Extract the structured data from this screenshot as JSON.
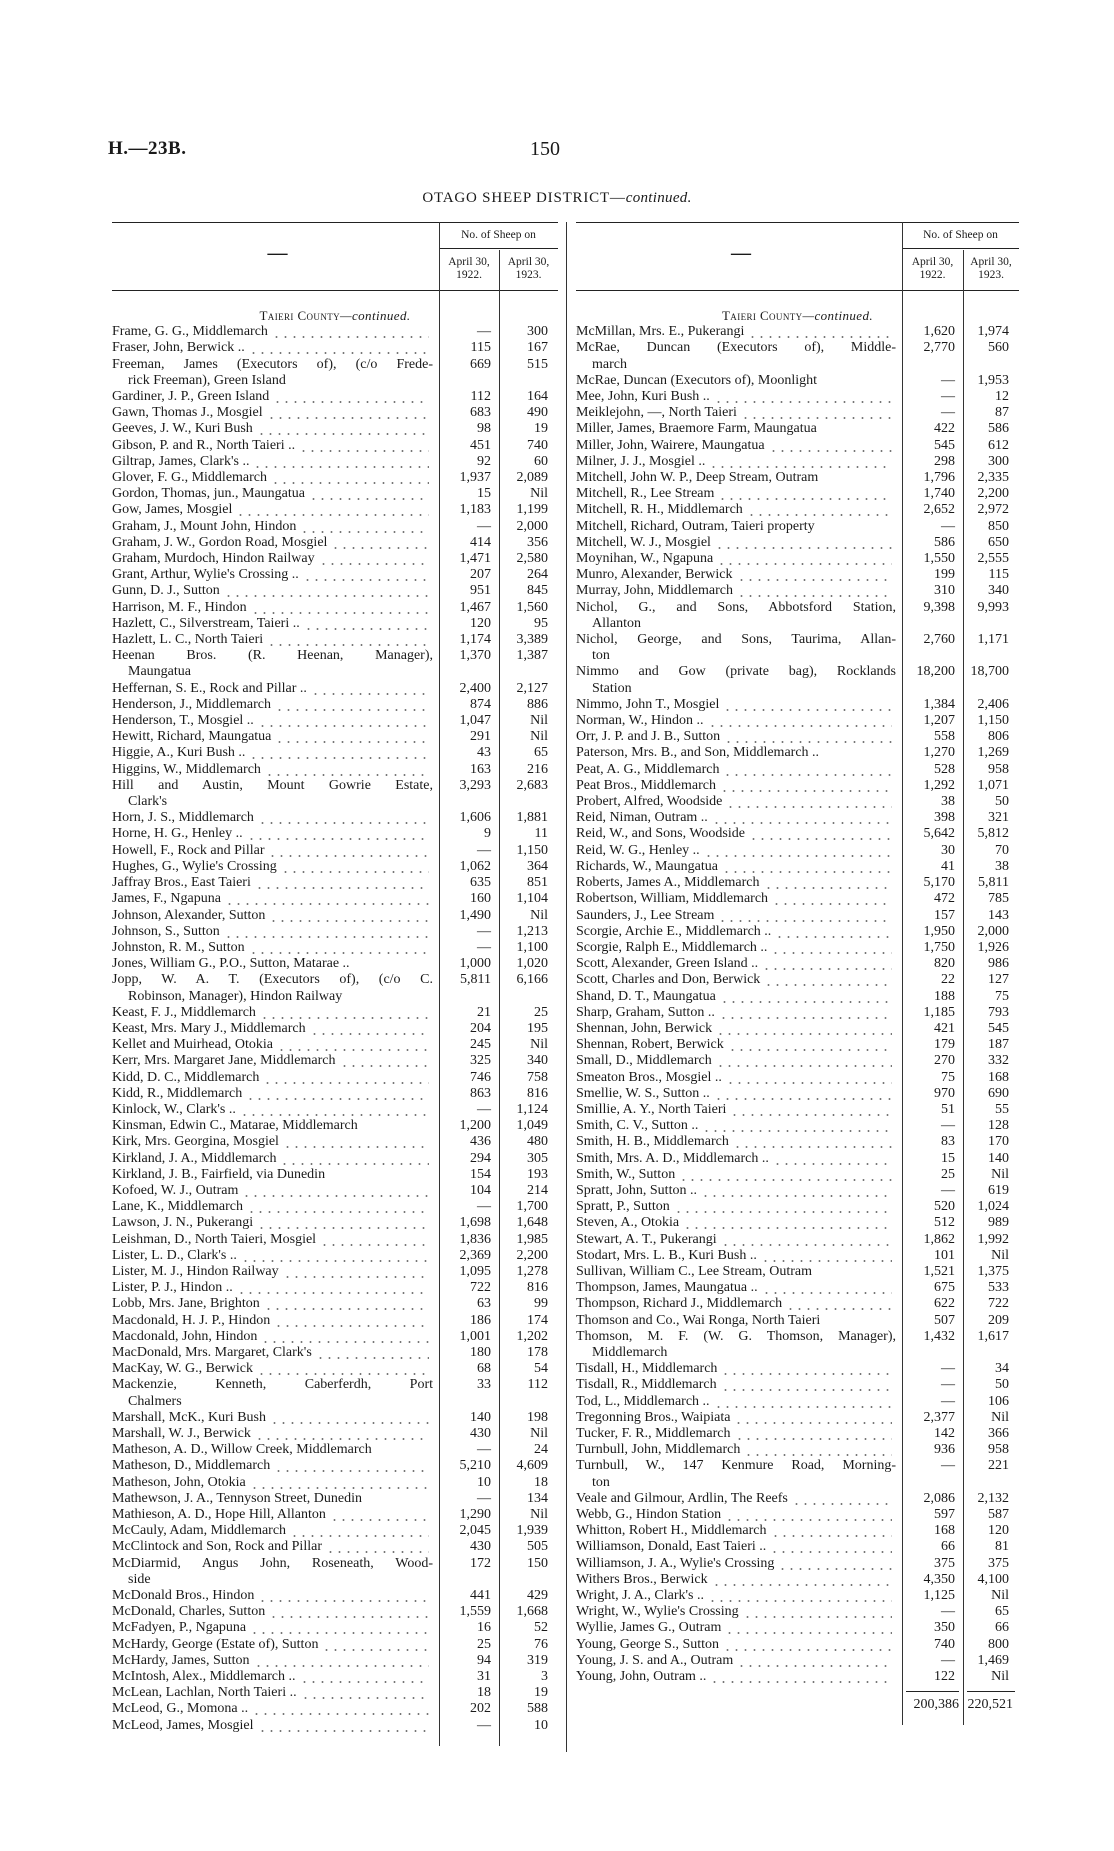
{
  "header": {
    "ref": "H.—23B.",
    "page": "150",
    "title": "OTAGO SHEEP DISTRICT—",
    "title_italic": "continued."
  },
  "columns": {
    "group": "No. of Sheep on",
    "col1": "April 30, 1922.",
    "col2": "April 30, 1923.",
    "name_col": "—"
  },
  "county_heading": {
    "name": "Taieri County",
    "suffix": "—continued."
  },
  "left": [
    {
      "name": "Frame, G. G., Middlemarch",
      "y1922": "—",
      "y1923": "300"
    },
    {
      "name": "Fraser, John, Berwick ..",
      "y1922": "115",
      "y1923": "167"
    },
    {
      "name": "Freeman, James (Executors of), (c/o Frede-",
      "cont": "rick Freeman), Green Island",
      "y1922": "669",
      "y1923": "515"
    },
    {
      "name": "Gardiner, J. P., Green Island",
      "y1922": "112",
      "y1923": "164"
    },
    {
      "name": "Gawn, Thomas J., Mosgiel",
      "y1922": "683",
      "y1923": "490"
    },
    {
      "name": "Geeves, J. W., Kuri Bush",
      "y1922": "98",
      "y1923": "19"
    },
    {
      "name": "Gibson, P. and R., North Taieri ..",
      "y1922": "451",
      "y1923": "740"
    },
    {
      "name": "Giltrap, James, Clark's ..",
      "y1922": "92",
      "y1923": "60"
    },
    {
      "name": "Glover, F. G., Middlemarch",
      "y1922": "1,937",
      "y1923": "2,089"
    },
    {
      "name": "Gordon, Thomas, jun., Maungatua",
      "y1922": "15",
      "y1923": "Nil"
    },
    {
      "name": "Gow, James, Mosgiel",
      "y1922": "1,183",
      "y1923": "1,199"
    },
    {
      "name": "Graham, J., Mount John, Hindon",
      "y1922": "—",
      "y1923": "2,000"
    },
    {
      "name": "Graham, J. W., Gordon Road, Mosgiel",
      "y1922": "414",
      "y1923": "356"
    },
    {
      "name": "Graham, Murdoch, Hindon Railway",
      "y1922": "1,471",
      "y1923": "2,580"
    },
    {
      "name": "Grant, Arthur, Wylie's Crossing ..",
      "y1922": "207",
      "y1923": "264"
    },
    {
      "name": "Gunn, D. J., Sutton",
      "y1922": "951",
      "y1923": "845"
    },
    {
      "name": "Harrison, M. F., Hindon",
      "y1922": "1,467",
      "y1923": "1,560"
    },
    {
      "name": "Hazlett, C., Silverstream, Taieri ..",
      "y1922": "120",
      "y1923": "95"
    },
    {
      "name": "Hazlett, L. C., North Taieri",
      "y1922": "1,174",
      "y1923": "3,389"
    },
    {
      "name": "Heenan Bros. (R. Heenan, Manager),",
      "cont": "Maungatua",
      "y1922": "1,370",
      "y1923": "1,387"
    },
    {
      "name": "Heffernan, S. E., Rock and Pillar ..",
      "y1922": "2,400",
      "y1923": "2,127"
    },
    {
      "name": "Henderson, J., Middlemarch",
      "y1922": "874",
      "y1923": "886"
    },
    {
      "name": "Henderson, T., Mosgiel ..",
      "y1922": "1,047",
      "y1923": "Nil"
    },
    {
      "name": "Hewitt, Richard, Maungatua",
      "y1922": "291",
      "y1923": "Nil"
    },
    {
      "name": "Higgie, A., Kuri Bush ..",
      "y1922": "43",
      "y1923": "65"
    },
    {
      "name": "Higgins, W., Middlemarch",
      "y1922": "163",
      "y1923": "216"
    },
    {
      "name": "Hill and Austin, Mount Gowrie Estate,",
      "cont": "Clark's",
      "y1922": "3,293",
      "y1923": "2,683"
    },
    {
      "name": "Horn, J. S., Middlemarch",
      "y1922": "1,606",
      "y1923": "1,881"
    },
    {
      "name": "Horne, H. G., Henley ..",
      "y1922": "9",
      "y1923": "11"
    },
    {
      "name": "Howell, F., Rock and Pillar",
      "y1922": "—",
      "y1923": "1,150"
    },
    {
      "name": "Hughes, G., Wylie's Crossing",
      "y1922": "1,062",
      "y1923": "364"
    },
    {
      "name": "Jaffray Bros., East Taieri",
      "y1922": "635",
      "y1923": "851"
    },
    {
      "name": "James, F., Ngapuna",
      "y1922": "160",
      "y1923": "1,104"
    },
    {
      "name": "Johnson, Alexander, Sutton",
      "y1922": "1,490",
      "y1923": "Nil"
    },
    {
      "name": "Johnson, S., Sutton",
      "y1922": "—",
      "y1923": "1,213"
    },
    {
      "name": "Johnston, R. M., Sutton",
      "y1922": "—",
      "y1923": "1,100"
    },
    {
      "name": "Jones, William G., P.O., Sutton, Matarae ..",
      "y1922": "1,000",
      "y1923": "1,020"
    },
    {
      "name": "Jopp, W. A. T. (Executors of), (c/o C.",
      "cont": "Robinson, Manager), Hindon Railway",
      "y1922": "5,811",
      "y1923": "6,166"
    },
    {
      "name": "Keast, F. J., Middlemarch",
      "y1922": "21",
      "y1923": "25"
    },
    {
      "name": "Keast, Mrs. Mary J., Middlemarch",
      "y1922": "204",
      "y1923": "195"
    },
    {
      "name": "Kellet and Muirhead, Otokia",
      "y1922": "245",
      "y1923": "Nil"
    },
    {
      "name": "Kerr, Mrs. Margaret Jane, Middlemarch",
      "y1922": "325",
      "y1923": "340"
    },
    {
      "name": "Kidd, D. C., Middlemarch",
      "y1922": "746",
      "y1923": "758"
    },
    {
      "name": "Kidd, R., Middlemarch",
      "y1922": "863",
      "y1923": "816"
    },
    {
      "name": "Kinlock, W., Clark's ..",
      "y1922": "—",
      "y1923": "1,124"
    },
    {
      "name": "Kinsman, Edwin C., Matarae, Middlemarch",
      "y1922": "1,200",
      "y1923": "1,049"
    },
    {
      "name": "Kirk, Mrs. Georgina, Mosgiel",
      "y1922": "436",
      "y1923": "480"
    },
    {
      "name": "Kirkland, J. A., Middlemarch",
      "y1922": "294",
      "y1923": "305"
    },
    {
      "name": "Kirkland, J. B., Fairfield, via Dunedin",
      "y1922": "154",
      "y1923": "193"
    },
    {
      "name": "Kofoed, W. J., Outram",
      "y1922": "104",
      "y1923": "214"
    },
    {
      "name": "Lane, K., Middlemarch",
      "y1922": "—",
      "y1923": "1,700"
    },
    {
      "name": "Lawson, J. N., Pukerangi",
      "y1922": "1,698",
      "y1923": "1,648"
    },
    {
      "name": "Leishman, D., North Taieri, Mosgiel",
      "y1922": "1,836",
      "y1923": "1,985"
    },
    {
      "name": "Lister, L. D., Clark's ..",
      "y1922": "2,369",
      "y1923": "2,200"
    },
    {
      "name": "Lister, M. J., Hindon Railway",
      "y1922": "1,095",
      "y1923": "1,278"
    },
    {
      "name": "Lister, P. J., Hindon ..",
      "y1922": "722",
      "y1923": "816"
    },
    {
      "name": "Lobb, Mrs. Jane, Brighton",
      "y1922": "63",
      "y1923": "99"
    },
    {
      "name": "Macdonald, H. J. P., Hindon",
      "y1922": "186",
      "y1923": "174"
    },
    {
      "name": "Macdonald, John, Hindon",
      "y1922": "1,001",
      "y1923": "1,202"
    },
    {
      "name": "MacDonald, Mrs. Margaret, Clark's",
      "y1922": "180",
      "y1923": "178"
    },
    {
      "name": "MacKay, W. G., Berwick",
      "y1922": "68",
      "y1923": "54"
    },
    {
      "name": "Mackenzie, Kenneth, Caberferdh, Port",
      "cont": "Chalmers",
      "y1922": "33",
      "y1923": "112"
    },
    {
      "name": "Marshall, McK., Kuri Bush",
      "y1922": "140",
      "y1923": "198"
    },
    {
      "name": "Marshall, W. J., Berwick",
      "y1922": "430",
      "y1923": "Nil"
    },
    {
      "name": "Matheson, A. D., Willow Creek, Middlemarch",
      "y1922": "—",
      "y1923": "24"
    },
    {
      "name": "Matheson, D., Middlemarch",
      "y1922": "5,210",
      "y1923": "4,609"
    },
    {
      "name": "Matheson, John, Otokia",
      "y1922": "10",
      "y1923": "18"
    },
    {
      "name": "Mathewson, J. A., Tennyson Street, Dunedin",
      "y1922": "—",
      "y1923": "134"
    },
    {
      "name": "Mathieson, A. D., Hope Hill, Allanton",
      "y1922": "1,290",
      "y1923": "Nil"
    },
    {
      "name": "McCauly, Adam, Middlemarch",
      "y1922": "2,045",
      "y1923": "1,939"
    },
    {
      "name": "McClintock and Son, Rock and Pillar",
      "y1922": "430",
      "y1923": "505"
    },
    {
      "name": "McDiarmid, Angus John, Roseneath, Wood-",
      "cont": "side",
      "y1922": "172",
      "y1923": "150"
    },
    {
      "name": "McDonald Bros., Hindon",
      "y1922": "441",
      "y1923": "429"
    },
    {
      "name": "McDonald, Charles, Sutton",
      "y1922": "1,559",
      "y1923": "1,668"
    },
    {
      "name": "McFadyen, P., Ngapuna",
      "y1922": "16",
      "y1923": "52"
    },
    {
      "name": "McHardy, George (Estate of), Sutton",
      "y1922": "25",
      "y1923": "76"
    },
    {
      "name": "McHardy, James, Sutton",
      "y1922": "94",
      "y1923": "319"
    },
    {
      "name": "McIntosh, Alex., Middlemarch ..",
      "y1922": "31",
      "y1923": "3"
    },
    {
      "name": "McLean, Lachlan, North Taieri ..",
      "y1922": "18",
      "y1923": "19"
    },
    {
      "name": "McLeod, G., Momona ..",
      "y1922": "202",
      "y1923": "588"
    },
    {
      "name": "McLeod, James, Mosgiel",
      "y1922": "—",
      "y1923": "10"
    }
  ],
  "right": [
    {
      "name": "McMillan, Mrs. E., Pukerangi",
      "y1922": "1,620",
      "y1923": "1,974"
    },
    {
      "name": "McRae, Duncan (Executors of), Middle-",
      "cont": "march",
      "y1922": "2,770",
      "y1923": "560"
    },
    {
      "name": "McRae, Duncan (Executors of), Moonlight",
      "y1922": "—",
      "y1923": "1,953"
    },
    {
      "name": "Mee, John, Kuri Bush ..",
      "y1922": "—",
      "y1923": "12"
    },
    {
      "name": "Meiklejohn, —, North Taieri",
      "y1922": "—",
      "y1923": "87"
    },
    {
      "name": "Miller, James, Braemore Farm, Maungatua",
      "y1922": "422",
      "y1923": "586"
    },
    {
      "name": "Miller, John, Wairere, Maungatua",
      "y1922": "545",
      "y1923": "612"
    },
    {
      "name": "Milner, J. J., Mosgiel ..",
      "y1922": "298",
      "y1923": "300"
    },
    {
      "name": "Mitchell, John W. P., Deep Stream, Outram",
      "y1922": "1,796",
      "y1923": "2,335"
    },
    {
      "name": "Mitchell, R., Lee Stream",
      "y1922": "1,740",
      "y1923": "2,200"
    },
    {
      "name": "Mitchell, R. H., Middlemarch",
      "y1922": "2,652",
      "y1923": "2,972"
    },
    {
      "name": "Mitchell, Richard, Outram, Taieri property",
      "y1922": "—",
      "y1923": "850"
    },
    {
      "name": "Mitchell, W. J., Mosgiel",
      "y1922": "586",
      "y1923": "650"
    },
    {
      "name": "Moynihan, W., Ngapuna",
      "y1922": "1,550",
      "y1923": "2,555"
    },
    {
      "name": "Munro, Alexander, Berwick",
      "y1922": "199",
      "y1923": "115"
    },
    {
      "name": "Murray, John, Middlemarch",
      "y1922": "310",
      "y1923": "340"
    },
    {
      "name": "Nichol, G., and Sons, Abbotsford Station,",
      "cont": "Allanton",
      "y1922": "9,398",
      "y1923": "9,993"
    },
    {
      "name": "Nichol, George, and Sons, Taurima, Allan-",
      "cont": "ton",
      "y1922": "2,760",
      "y1923": "1,171"
    },
    {
      "name": "Nimmo and Gow (private bag), Rocklands",
      "cont": "Station",
      "y1922": "18,200",
      "y1923": "18,700"
    },
    {
      "name": "Nimmo, John T., Mosgiel",
      "y1922": "1,384",
      "y1923": "2,406"
    },
    {
      "name": "Norman, W., Hindon ..",
      "y1922": "1,207",
      "y1923": "1,150"
    },
    {
      "name": "Orr, J. P. and J. B., Sutton",
      "y1922": "558",
      "y1923": "806"
    },
    {
      "name": "Paterson, Mrs. B., and Son, Middlemarch ..",
      "y1922": "1,270",
      "y1923": "1,269"
    },
    {
      "name": "Peat, A. G., Middlemarch",
      "y1922": "528",
      "y1923": "958"
    },
    {
      "name": "Peat Bros., Middlemarch",
      "y1922": "1,292",
      "y1923": "1,071"
    },
    {
      "name": "Probert, Alfred, Woodside",
      "y1922": "38",
      "y1923": "50"
    },
    {
      "name": "Reid, Niman, Outram ..",
      "y1922": "398",
      "y1923": "321"
    },
    {
      "name": "Reid, W., and Sons, Woodside",
      "y1922": "5,642",
      "y1923": "5,812"
    },
    {
      "name": "Reid, W. G., Henley ..",
      "y1922": "30",
      "y1923": "70"
    },
    {
      "name": "Richards, W., Maungatua",
      "y1922": "41",
      "y1923": "38"
    },
    {
      "name": "Roberts, James A., Middlemarch",
      "y1922": "5,170",
      "y1923": "5,811"
    },
    {
      "name": "Robertson, William, Middlemarch",
      "y1922": "472",
      "y1923": "785"
    },
    {
      "name": "Saunders, J., Lee Stream",
      "y1922": "157",
      "y1923": "143"
    },
    {
      "name": "Scorgie, Archie E., Middlemarch ..",
      "y1922": "1,950",
      "y1923": "2,000"
    },
    {
      "name": "Scorgie, Ralph E., Middlemarch ..",
      "y1922": "1,750",
      "y1923": "1,926"
    },
    {
      "name": "Scott, Alexander, Green Island ..",
      "y1922": "820",
      "y1923": "986"
    },
    {
      "name": "Scott, Charles and Don, Berwick",
      "y1922": "22",
      "y1923": "127"
    },
    {
      "name": "Shand, D. T., Maungatua",
      "y1922": "188",
      "y1923": "75"
    },
    {
      "name": "Sharp, Graham, Sutton ..",
      "y1922": "1,185",
      "y1923": "793"
    },
    {
      "name": "Shennan, John, Berwick",
      "y1922": "421",
      "y1923": "545"
    },
    {
      "name": "Shennan, Robert, Berwick",
      "y1922": "179",
      "y1923": "187"
    },
    {
      "name": "Small, D., Middlemarch",
      "y1922": "270",
      "y1923": "332"
    },
    {
      "name": "Smeaton Bros., Mosgiel ..",
      "y1922": "75",
      "y1923": "168"
    },
    {
      "name": "Smellie, W. S., Sutton ..",
      "y1922": "970",
      "y1923": "690"
    },
    {
      "name": "Smillie, A. Y., North Taieri",
      "y1922": "51",
      "y1923": "55"
    },
    {
      "name": "Smith, C. V., Sutton ..",
      "y1922": "—",
      "y1923": "128"
    },
    {
      "name": "Smith, H. B., Middlemarch",
      "y1922": "83",
      "y1923": "170"
    },
    {
      "name": "Smith, Mrs. A. D., Middlemarch ..",
      "y1922": "15",
      "y1923": "140"
    },
    {
      "name": "Smith, W., Sutton",
      "y1922": "25",
      "y1923": "Nil"
    },
    {
      "name": "Spratt, John, Sutton ..",
      "y1922": "—",
      "y1923": "619"
    },
    {
      "name": "Spratt, P., Sutton",
      "y1922": "520",
      "y1923": "1,024"
    },
    {
      "name": "Steven, A., Otokia",
      "y1922": "512",
      "y1923": "989"
    },
    {
      "name": "Stewart, A. T., Pukerangi",
      "y1922": "1,862",
      "y1923": "1,992"
    },
    {
      "name": "Stodart, Mrs. L. B., Kuri Bush ..",
      "y1922": "101",
      "y1923": "Nil"
    },
    {
      "name": "Sullivan, William C., Lee Stream, Outram",
      "y1922": "1,521",
      "y1923": "1,375"
    },
    {
      "name": "Thompson, James, Maungatua ..",
      "y1922": "675",
      "y1923": "533"
    },
    {
      "name": "Thompson, Richard J., Middlemarch",
      "y1922": "622",
      "y1923": "722"
    },
    {
      "name": "Thomson and Co., Wai Ronga, North Taieri",
      "y1922": "507",
      "y1923": "209"
    },
    {
      "name": "Thomson, M. F. (W. G. Thomson, Manager),",
      "cont": "Middlemarch",
      "y1922": "1,432",
      "y1923": "1,617"
    },
    {
      "name": "Tisdall, H., Middlemarch",
      "y1922": "—",
      "y1923": "34"
    },
    {
      "name": "Tisdall, R., Middlemarch",
      "y1922": "—",
      "y1923": "50"
    },
    {
      "name": "Tod, L., Middlemarch ..",
      "y1922": "—",
      "y1923": "106"
    },
    {
      "name": "Tregonning Bros., Waipiata",
      "y1922": "2,377",
      "y1923": "Nil"
    },
    {
      "name": "Tucker, F. R., Middlemarch",
      "y1922": "142",
      "y1923": "366"
    },
    {
      "name": "Turnbull, John, Middlemarch",
      "y1922": "936",
      "y1923": "958"
    },
    {
      "name": "Turnbull, W., 147 Kenmure Road, Morning-",
      "cont": "ton",
      "y1922": "—",
      "y1923": "221"
    },
    {
      "name": "Veale and Gilmour, Ardlin, The Reefs",
      "y1922": "2,086",
      "y1923": "2,132"
    },
    {
      "name": "Webb, G., Hindon Station",
      "y1922": "597",
      "y1923": "587"
    },
    {
      "name": "Whitton, Robert H., Middlemarch",
      "y1922": "168",
      "y1923": "120"
    },
    {
      "name": "Williamson, Donald, East Taieri ..",
      "y1922": "66",
      "y1923": "81"
    },
    {
      "name": "Williamson, J. A., Wylie's Crossing",
      "y1922": "375",
      "y1923": "375"
    },
    {
      "name": "Withers Bros., Berwick",
      "y1922": "4,350",
      "y1923": "4,100"
    },
    {
      "name": "Wright, J. A., Clark's ..",
      "y1922": "1,125",
      "y1923": "Nil"
    },
    {
      "name": "Wright, W., Wylie's Crossing",
      "y1922": "—",
      "y1923": "65"
    },
    {
      "name": "Wyllie, James G., Outram",
      "y1922": "350",
      "y1923": "66"
    },
    {
      "name": "Young, George S., Sutton",
      "y1922": "740",
      "y1923": "800"
    },
    {
      "name": "Young, J. S. and A., Outram",
      "y1922": "—",
      "y1923": "1,469"
    },
    {
      "name": "Young, John, Outram ..",
      "y1922": "122",
      "y1923": "Nil"
    }
  ],
  "totals": {
    "y1922": "200,386",
    "y1923": "220,521"
  }
}
